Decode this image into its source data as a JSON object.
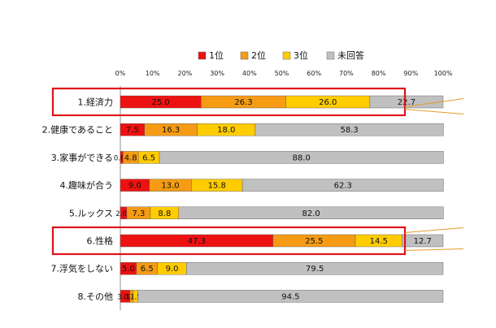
{
  "chart_data": {
    "type": "bar",
    "orientation": "horizontal",
    "stacked": true,
    "categories": [
      "1.経済力",
      "2.健康であること",
      "3.家事ができる",
      "4.趣味が合う",
      "5.ルックス",
      "6.性格",
      "7.浮気をしない",
      "8.その他"
    ],
    "series": [
      {
        "name": "1位",
        "color": "#ee1111",
        "values": [
          25.0,
          7.5,
          0.8,
          9.0,
          2.0,
          47.3,
          5.0,
          3.0
        ]
      },
      {
        "name": "2位",
        "color": "#f59b14",
        "values": [
          26.3,
          16.3,
          4.8,
          13.0,
          7.3,
          25.5,
          6.5,
          1.0
        ]
      },
      {
        "name": "3位",
        "color": "#ffcc00",
        "values": [
          26.0,
          18.0,
          6.5,
          15.8,
          8.8,
          14.5,
          9.0,
          1.5
        ]
      },
      {
        "name": "未回答",
        "color": "#c0c0c0",
        "values": [
          22.7,
          58.3,
          88.0,
          62.3,
          82.0,
          12.7,
          79.5,
          94.5
        ]
      }
    ],
    "data_labels": [
      [
        "25.0",
        "7.5",
        "0.8",
        "9.0",
        "2.0",
        "47.3",
        "5.0",
        "3.0"
      ],
      [
        "26.3",
        "16.3",
        "4.8",
        "13.0",
        "7.3",
        "25.5",
        "6.5",
        "1.0"
      ],
      [
        "26.0",
        "18.0",
        "6.5",
        "15.8",
        "8.8",
        "14.5",
        "9.0",
        "1.5"
      ],
      [
        "22.7",
        "58.3",
        "88.0",
        "62.3",
        "82.0",
        "12.7",
        "79.5",
        "94.5"
      ]
    ],
    "xlim": [
      0,
      100
    ],
    "xticks": [
      "0%",
      "10%",
      "20%",
      "30%",
      "40%",
      "50%",
      "60%",
      "70%",
      "80%",
      "90%",
      "100%"
    ],
    "highlighted_categories": [
      "1.経済力",
      "6.性格"
    ],
    "highlight_color": "#e0101a",
    "legend_position": "top",
    "grid": false
  }
}
